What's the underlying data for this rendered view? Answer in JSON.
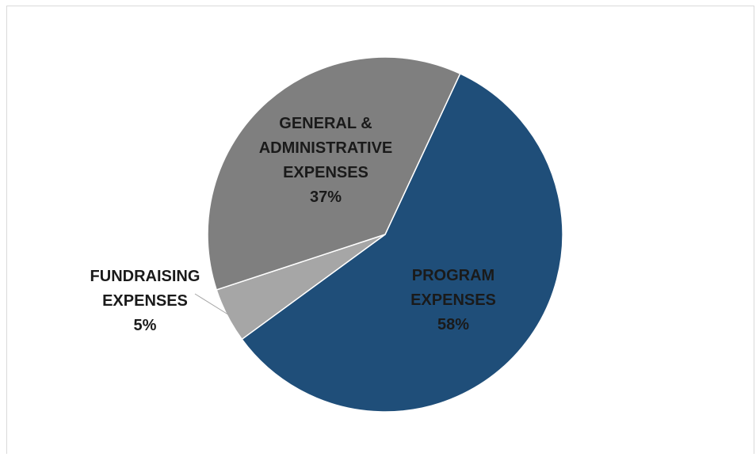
{
  "chart_data": {
    "type": "pie",
    "title": "",
    "slices": [
      {
        "label_lines": [
          "PROGRAM",
          "EXPENSES"
        ],
        "percent_label": "58%",
        "value": 58,
        "color": "#1f4e79"
      },
      {
        "label_lines": [
          "FUNDRAISING",
          "EXPENSES"
        ],
        "percent_label": "5%",
        "value": 5,
        "color": "#a6a6a6"
      },
      {
        "label_lines": [
          "GENERAL &",
          "ADMINISTRATIVE",
          "EXPENSES"
        ],
        "percent_label": "37%",
        "value": 37,
        "color": "#7f7f7f"
      }
    ],
    "start_angle_deg": 25,
    "direction": "clockwise",
    "legend": "none",
    "label_text_color": "#1a1a1a"
  }
}
